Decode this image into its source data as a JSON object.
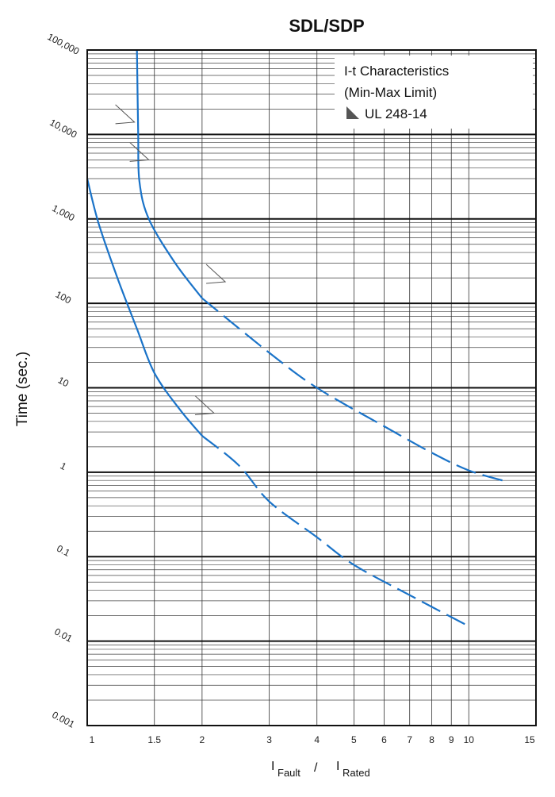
{
  "chart_data": {
    "type": "line",
    "title": "SDL/SDP",
    "xlabel": {
      "num": "Fault",
      "den": "Rated",
      "prefix": "I",
      "sep": "/"
    },
    "ylabel": "Time (sec.)",
    "x_scale": "log",
    "y_scale": "log",
    "xlim": [
      1,
      15
    ],
    "ylim": [
      0.001,
      100000
    ],
    "grid": true,
    "x_ticks": [
      1,
      1.5,
      2,
      3,
      4,
      5,
      6,
      7,
      8,
      9,
      10,
      15
    ],
    "x_tick_labels": [
      "1",
      "1.5",
      "2",
      "3",
      "4",
      "5",
      "6",
      "7",
      "8",
      "9",
      "10",
      "15"
    ],
    "y_ticks": [
      0.001,
      0.01,
      0.1,
      1,
      10,
      100,
      1000,
      10000,
      100000
    ],
    "y_tick_labels": [
      "0.001",
      "0.01",
      "0.1",
      "1",
      "10",
      "100",
      "1,000",
      "10,000",
      "100,000"
    ],
    "legend": {
      "lines": [
        "I-t Characteristics",
        "(Min-Max Limit)"
      ],
      "symbol_label": "UL 248-14",
      "placement": "top-right"
    },
    "series": [
      {
        "id": "max",
        "color": "#1a73c8",
        "solid": [
          [
            1.35,
            100000
          ],
          [
            1.36,
            10000
          ],
          [
            1.37,
            2800
          ],
          [
            1.45,
            1000
          ],
          [
            1.7,
            300
          ],
          [
            2.0,
            115
          ]
        ],
        "dashed": [
          [
            2.0,
            115
          ],
          [
            3.0,
            26
          ],
          [
            4.0,
            10
          ],
          [
            6.0,
            3.5
          ],
          [
            8.0,
            1.7
          ],
          [
            10.0,
            1.05
          ],
          [
            12.5,
            0.78
          ]
        ]
      },
      {
        "id": "min",
        "color": "#1a73c8",
        "solid": [
          [
            1.0,
            3000
          ],
          [
            1.07,
            900
          ],
          [
            1.2,
            200
          ],
          [
            1.35,
            50
          ],
          [
            1.5,
            15
          ],
          [
            1.75,
            5.5
          ],
          [
            2.0,
            2.7
          ]
        ],
        "dashed": [
          [
            2.0,
            2.7
          ],
          [
            2.5,
            1.2
          ],
          [
            3.0,
            0.45
          ],
          [
            4.0,
            0.17
          ],
          [
            5.0,
            0.08
          ],
          [
            7.0,
            0.035
          ],
          [
            10.0,
            0.015
          ]
        ]
      }
    ],
    "ul_markers": [
      {
        "x": 1.33,
        "y": 14000
      },
      {
        "x": 1.45,
        "y": 5000
      },
      {
        "x": 2.3,
        "y": 180
      },
      {
        "x": 2.15,
        "y": 5
      }
    ]
  }
}
